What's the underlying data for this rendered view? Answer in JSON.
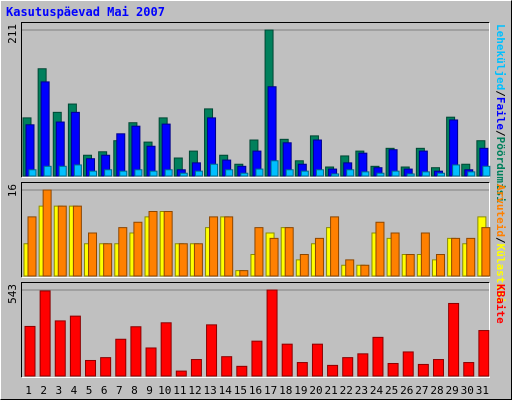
{
  "title": "Kasutuspäevad Mai 2007",
  "categories": [
    "1",
    "2",
    "3",
    "4",
    "5",
    "6",
    "7",
    "8",
    "9",
    "10",
    "11",
    "12",
    "13",
    "14",
    "15",
    "16",
    "17",
    "18",
    "19",
    "20",
    "21",
    "22",
    "23",
    "24",
    "25",
    "26",
    "27",
    "28",
    "29",
    "30",
    "31"
  ],
  "category_colors": [
    "#000000",
    "#000000",
    "#000000",
    "#000000",
    "#00805c",
    "#00805c",
    "#000000",
    "#000000",
    "#000000",
    "#000000",
    "#000000",
    "#00805c",
    "#00805c",
    "#000000",
    "#000000",
    "#000000",
    "#000000",
    "#000000",
    "#00805c",
    "#00805c",
    "#000000",
    "#000000",
    "#000000",
    "#000000",
    "#000000",
    "#00805c",
    "#00805c",
    "#000000",
    "#000000",
    "#000000",
    "#000000"
  ],
  "legend_separator": "/",
  "chart_data": [
    {
      "type": "bar",
      "ylim": [
        0,
        211
      ],
      "yticks": [
        211
      ],
      "series": [
        {
          "name": "Pöördumisi",
          "color": "#00805c",
          "values": [
            84,
            155,
            92,
            104,
            30,
            35,
            51,
            77,
            49,
            84,
            26,
            36,
            97,
            30,
            17,
            52,
            211,
            53,
            22,
            58,
            13,
            29,
            36,
            14,
            40,
            13,
            40,
            12,
            85,
            17,
            51
          ]
        },
        {
          "name": "Faile",
          "color": "#0000ff",
          "values": [
            74,
            136,
            78,
            92,
            25,
            30,
            61,
            72,
            43,
            75,
            9,
            19,
            84,
            23,
            14,
            36,
            129,
            48,
            17,
            52,
            10,
            19,
            33,
            12,
            38,
            10,
            36,
            7,
            81,
            9,
            40
          ]
        },
        {
          "name": "Leheküljed",
          "color": "#00c0ff",
          "values": [
            9,
            14,
            14,
            16,
            7,
            9,
            7,
            9,
            7,
            9,
            4,
            7,
            17,
            9,
            4,
            10,
            22,
            9,
            7,
            9,
            3,
            9,
            6,
            4,
            7,
            3,
            6,
            4,
            16,
            6,
            14
          ]
        }
      ]
    },
    {
      "type": "bar",
      "ylim": [
        0,
        16
      ],
      "yticks": [
        16
      ],
      "series": [
        {
          "name": "Külastusi",
          "color": "#ffff00",
          "values": [
            6,
            13,
            13,
            13,
            6,
            6,
            6,
            8,
            11,
            12,
            6,
            6,
            9,
            11,
            1,
            4,
            8,
            9,
            3,
            6,
            9,
            2,
            2,
            8,
            7,
            4,
            4,
            3,
            7,
            6,
            11
          ]
        },
        {
          "name": "Arvuteid",
          "color": "#ff8000",
          "values": [
            11,
            16,
            13,
            13,
            8,
            6,
            9,
            10,
            12,
            12,
            6,
            6,
            11,
            11,
            1,
            9,
            7,
            9,
            4,
            7,
            11,
            3,
            2,
            10,
            8,
            4,
            8,
            4,
            7,
            7,
            9
          ]
        }
      ]
    },
    {
      "type": "bar",
      "ylim": [
        0,
        543
      ],
      "yticks": [
        543
      ],
      "series": [
        {
          "name": "KBaite",
          "color": "#ff0000",
          "values": [
            313,
            537,
            348,
            378,
            98,
            116,
            232,
            311,
            177,
            336,
            31,
            104,
            323,
            122,
            61,
            220,
            543,
            201,
            85,
            201,
            67,
            116,
            140,
            244,
            79,
            152,
            73,
            104,
            458,
            85,
            287
          ]
        }
      ]
    }
  ]
}
